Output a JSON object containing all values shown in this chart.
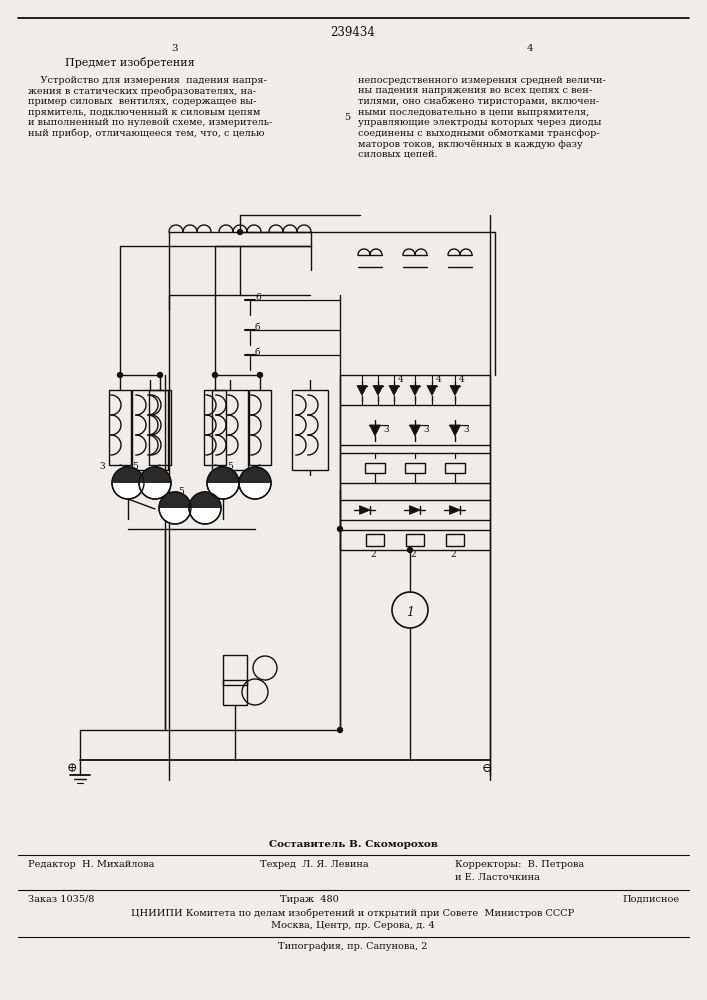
{
  "patent_number": "239434",
  "page_left": "3",
  "page_right": "4",
  "section_title": "Предмет изобретения",
  "text_left": "    Устройство для измерения  падения напря-\nжения в статических преобразователях, на-\nпример силовых  вентилях, содержащее вы-\nпрямитель, подключенный к силовым цепям\nи выполненный по нулевой схеме, измеритель-\nный прибор, отличающееся тем, что, с целью",
  "text_right": "непосредственного измерения средней величи-\nны падения напряжения во всех цепях с вен-\nтилями, оно снабжено тиристорами, включен-\nными последовательно в цепи выпрямителя,\nуправляющие электроды которых через диоды\nсоединены с выходными обмотками трансфор-\nматоров токов, включённых в каждую фазу\nсиловых цепей.",
  "line_number_5": "5",
  "footer_sestavitel": "Составитель В. Скоморохов",
  "footer_editor": "Редактор  Н. Михайлова",
  "footer_tech": "Техред  Л. Я. Левина",
  "footer_correctors": "Корректоры:  В. Петрова",
  "footer_correctors2": "и Е. Ласточкина",
  "footer_order": "Заказ 1035/8",
  "footer_copies": "Тираж  480",
  "footer_subscription": "Подписное",
  "footer_org": "ЦНИИПИ Комитета по делам изобретений и открытий при Совете  Министров СССР",
  "footer_address": "Москва, Центр, пр. Серова, д. 4",
  "footer_print": "Типография, пр. Сапунова, 2",
  "bg_color": "#f0ede8",
  "text_color": "#111111",
  "line_color": "#111111"
}
